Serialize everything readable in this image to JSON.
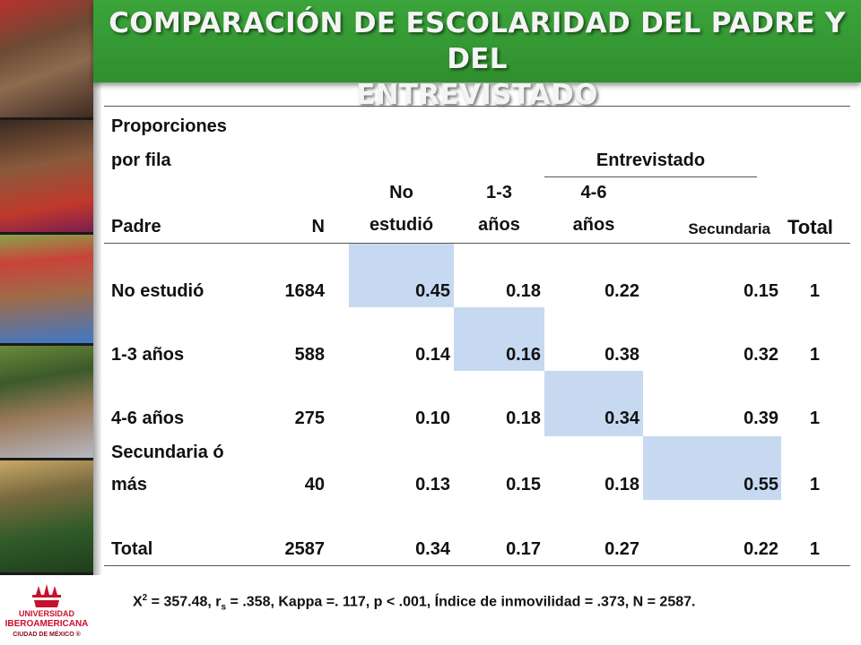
{
  "slide": {
    "title_line1": "COMPARACIÓN DE ESCOLARIDAD DEL PADRE Y DEL",
    "title_line2": "ENTREVISTADO"
  },
  "logo": {
    "line1": "UNIVERSIDAD",
    "line2": "IBEROAMERICANA",
    "line3": "CIUDAD DE MÉXICO ®"
  },
  "table": {
    "caption_line1": "Proporciones",
    "caption_line2": "por fila",
    "group_header": "Entrevistado",
    "col_padre": "Padre",
    "col_n": "N",
    "col_no_estudio_1": "No",
    "col_no_estudio_2": "estudió",
    "col_13_1": "1-3",
    "col_13_2": "años",
    "col_46_1": "4-6",
    "col_46_2": "años",
    "col_secundaria": "Secundaria",
    "col_total": "Total",
    "rows": [
      {
        "label1": "No estudió",
        "label2": "",
        "n": "1684",
        "v1": "0.45",
        "v2": "0.18",
        "v3": "0.22",
        "v4": "0.15",
        "total": "1"
      },
      {
        "label1": "1-3 años",
        "label2": "",
        "n": "588",
        "v1": "0.14",
        "v2": "0.16",
        "v3": "0.38",
        "v4": "0.32",
        "total": "1"
      },
      {
        "label1": "4-6 años",
        "label2": "",
        "n": "275",
        "v1": "0.10",
        "v2": "0.18",
        "v3": "0.34",
        "v4": "0.39",
        "total": "1"
      },
      {
        "label1": "Secundaria ó",
        "label2": "más",
        "n": "40",
        "v1": "0.13",
        "v2": "0.15",
        "v3": "0.18",
        "v4": "0.55",
        "total": "1"
      },
      {
        "label1": "Total",
        "label2": "",
        "n": "2587",
        "v1": "0.34",
        "v2": "0.17",
        "v3": "0.27",
        "v4": "0.22",
        "total": "1"
      }
    ],
    "highlight_color": "#c6d9f1"
  },
  "footnote": {
    "x": "X",
    "x_sup": "2",
    "part1": " = 357.48, r",
    "r_sub": "s",
    "part2": " = .358, Kappa =. 117, p < .001, Índice de inmovilidad = .373, N = 2587."
  },
  "colors": {
    "banner": "#2f8f2e",
    "brand_red": "#c8102e"
  }
}
